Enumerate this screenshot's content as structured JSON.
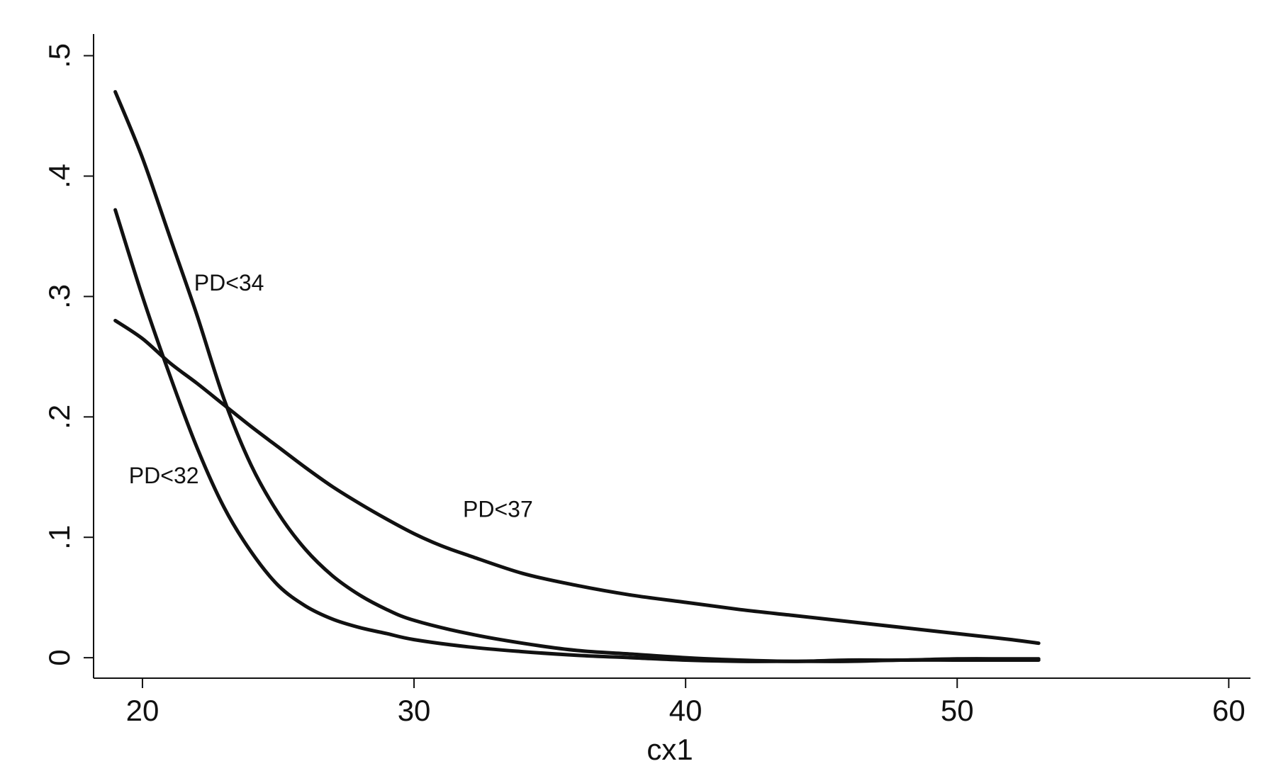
{
  "chart_data": {
    "type": "line",
    "title": "",
    "xlabel": "cx1",
    "ylabel": "",
    "xlim": [
      18.2,
      60.8
    ],
    "ylim": [
      -0.017,
      0.518
    ],
    "x_ticks": [
      20,
      30,
      40,
      50,
      60
    ],
    "x_tick_labels": [
      "20",
      "30",
      "40",
      "50",
      "60"
    ],
    "y_ticks": [
      0,
      0.1,
      0.2,
      0.3,
      0.4,
      0.5
    ],
    "y_tick_labels": [
      "0",
      ".1",
      ".2",
      ".3",
      ".4",
      ".5"
    ],
    "grid": false,
    "legend": "none",
    "series": [
      {
        "x": [
          19,
          20,
          21,
          22,
          23,
          24,
          25,
          26,
          27,
          28,
          29,
          30,
          32,
          34,
          36,
          38,
          40,
          42,
          44,
          46,
          48,
          50,
          52,
          53
        ],
        "values": [
          0.372,
          0.3,
          0.235,
          0.175,
          0.125,
          0.088,
          0.06,
          0.043,
          0.032,
          0.025,
          0.02,
          0.015,
          0.009,
          0.005,
          0.002,
          0.0,
          -0.002,
          -0.003,
          -0.003,
          -0.003,
          -0.002,
          -0.002,
          -0.002,
          -0.002
        ]
      },
      {
        "x": [
          19,
          20,
          21,
          22,
          23,
          24,
          25,
          26,
          27,
          28,
          29,
          30,
          32,
          34,
          36,
          38,
          40,
          42,
          44,
          46,
          48,
          50,
          52,
          53
        ],
        "values": [
          0.47,
          0.415,
          0.35,
          0.285,
          0.215,
          0.16,
          0.12,
          0.09,
          0.068,
          0.052,
          0.04,
          0.031,
          0.02,
          0.012,
          0.006,
          0.003,
          0.0,
          -0.002,
          -0.003,
          -0.002,
          -0.002,
          -0.001,
          -0.001,
          -0.001
        ]
      },
      {
        "x": [
          19,
          20,
          21,
          22,
          23,
          24,
          25,
          26,
          27,
          28,
          29,
          30,
          31,
          32,
          34,
          36,
          38,
          40,
          42,
          44,
          46,
          48,
          50,
          52,
          53
        ],
        "values": [
          0.28,
          0.265,
          0.245,
          0.228,
          0.21,
          0.192,
          0.175,
          0.158,
          0.142,
          0.128,
          0.115,
          0.103,
          0.093,
          0.085,
          0.07,
          0.06,
          0.052,
          0.046,
          0.04,
          0.035,
          0.03,
          0.025,
          0.02,
          0.015,
          0.012
        ]
      }
    ],
    "annotations": [
      {
        "text": "PD<34",
        "x": 21.9,
        "y": 0.305
      },
      {
        "text": "PD<32",
        "x": 19.5,
        "y": 0.145
      },
      {
        "text": "PD<37",
        "x": 31.8,
        "y": 0.117
      }
    ]
  }
}
